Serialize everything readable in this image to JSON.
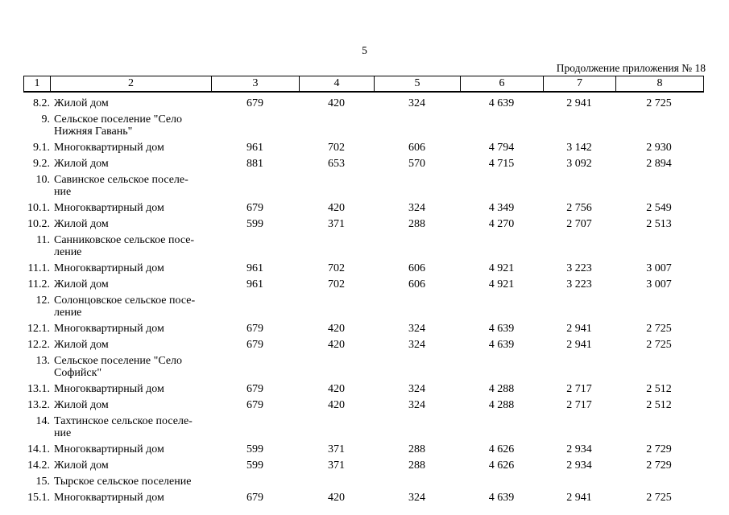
{
  "page": {
    "number": "5",
    "continuation": "Продолжение приложения № 18"
  },
  "table": {
    "header": [
      "1",
      "2",
      "3",
      "4",
      "5",
      "6",
      "7",
      "8"
    ],
    "rows": [
      {
        "num": "8.2.",
        "name": "Жилой дом",
        "values": [
          "679",
          "420",
          "324",
          "4 639",
          "2 941",
          "2 725"
        ]
      },
      {
        "num": "9.",
        "name": "Сельское поселение \"Село\nНижняя Гавань\"",
        "values": [
          "",
          "",
          "",
          "",
          "",
          ""
        ]
      },
      {
        "num": "9.1.",
        "name": "Многоквартирный дом",
        "values": [
          "961",
          "702",
          "606",
          "4 794",
          "3 142",
          "2 930"
        ]
      },
      {
        "num": "9.2.",
        "name": "Жилой дом",
        "values": [
          "881",
          "653",
          "570",
          "4 715",
          "3 092",
          "2 894"
        ]
      },
      {
        "num": "10.",
        "name": "Савинское сельское поселе-\nние",
        "values": [
          "",
          "",
          "",
          "",
          "",
          ""
        ]
      },
      {
        "num": "10.1.",
        "name": "Многоквартирный дом",
        "values": [
          "679",
          "420",
          "324",
          "4 349",
          "2 756",
          "2 549"
        ]
      },
      {
        "num": "10.2.",
        "name": "Жилой дом",
        "values": [
          "599",
          "371",
          "288",
          "4 270",
          "2 707",
          "2 513"
        ]
      },
      {
        "num": "11.",
        "name": "Санниковское сельское посе-\nление",
        "values": [
          "",
          "",
          "",
          "",
          "",
          ""
        ]
      },
      {
        "num": "11.1.",
        "name": "Многоквартирный дом",
        "values": [
          "961",
          "702",
          "606",
          "4 921",
          "3 223",
          "3 007"
        ]
      },
      {
        "num": "11.2.",
        "name": "Жилой дом",
        "values": [
          "961",
          "702",
          "606",
          "4 921",
          "3 223",
          "3 007"
        ]
      },
      {
        "num": "12.",
        "name": "Солонцовское сельское посе-\nление",
        "values": [
          "",
          "",
          "",
          "",
          "",
          ""
        ]
      },
      {
        "num": "12.1.",
        "name": "Многоквартирный дом",
        "values": [
          "679",
          "420",
          "324",
          "4 639",
          "2 941",
          "2 725"
        ]
      },
      {
        "num": "12.2.",
        "name": "Жилой дом",
        "values": [
          "679",
          "420",
          "324",
          "4 639",
          "2 941",
          "2 725"
        ]
      },
      {
        "num": "13.",
        "name": "Сельское поселение \"Село\nСофийск\"",
        "values": [
          "",
          "",
          "",
          "",
          "",
          ""
        ]
      },
      {
        "num": "13.1.",
        "name": "Многоквартирный дом",
        "values": [
          "679",
          "420",
          "324",
          "4 288",
          "2 717",
          "2 512"
        ]
      },
      {
        "num": "13.2.",
        "name": "Жилой дом",
        "values": [
          "679",
          "420",
          "324",
          "4 288",
          "2 717",
          "2 512"
        ]
      },
      {
        "num": "14.",
        "name": "Тахтинское сельское поселе-\nние",
        "values": [
          "",
          "",
          "",
          "",
          "",
          ""
        ]
      },
      {
        "num": "14.1.",
        "name": "Многоквартирный дом",
        "values": [
          "599",
          "371",
          "288",
          "4 626",
          "2 934",
          "2 729"
        ]
      },
      {
        "num": "14.2.",
        "name": "Жилой дом",
        "values": [
          "599",
          "371",
          "288",
          "4 626",
          "2 934",
          "2 729"
        ]
      },
      {
        "num": "15.",
        "name": "Тырское сельское поселение",
        "values": [
          "",
          "",
          "",
          "",
          "",
          ""
        ]
      },
      {
        "num": "15.1.",
        "name": "Многоквартирный дом",
        "values": [
          "679",
          "420",
          "324",
          "4 639",
          "2 941",
          "2 725"
        ]
      }
    ]
  }
}
